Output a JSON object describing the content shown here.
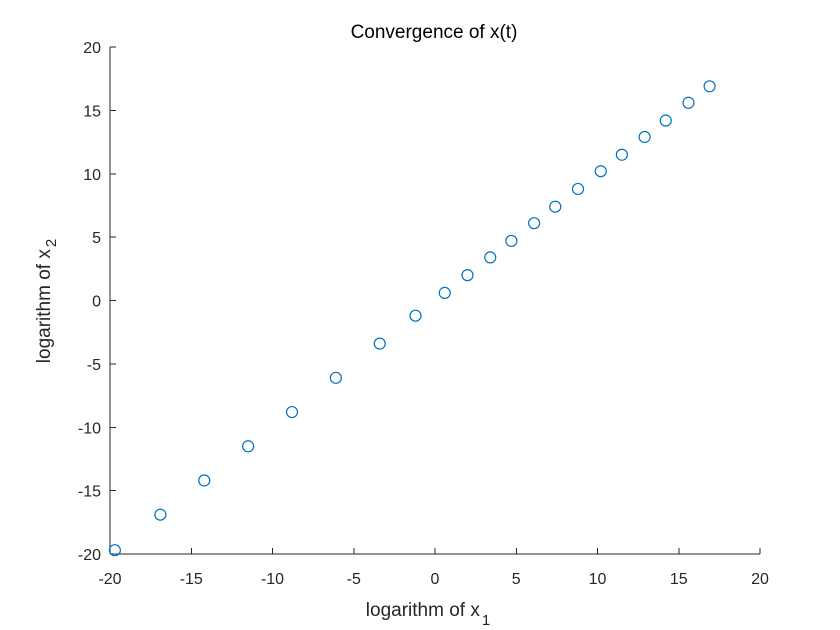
{
  "chart_data": {
    "type": "scatter",
    "title": "Convergence of x(t)",
    "xlabel": {
      "text": "logarithm of x",
      "sub": "1"
    },
    "ylabel": {
      "text": "logarithm of x",
      "sub": "2"
    },
    "xlim": [
      -20,
      20
    ],
    "ylim": [
      -20,
      20
    ],
    "xticks": [
      -20,
      -15,
      -10,
      -5,
      0,
      5,
      10,
      15,
      20
    ],
    "yticks": [
      -20,
      -15,
      -10,
      -5,
      0,
      5,
      10,
      15,
      20
    ],
    "grid": false,
    "marker": "circle-open",
    "color": "#0072BD",
    "points": [
      {
        "x": -19.7,
        "y": -19.7
      },
      {
        "x": -16.9,
        "y": -16.9
      },
      {
        "x": -14.2,
        "y": -14.2
      },
      {
        "x": -11.5,
        "y": -11.5
      },
      {
        "x": -8.8,
        "y": -8.8
      },
      {
        "x": -6.1,
        "y": -6.1
      },
      {
        "x": -3.4,
        "y": -3.4
      },
      {
        "x": -1.2,
        "y": -1.2
      },
      {
        "x": 0.6,
        "y": 0.6
      },
      {
        "x": 2.0,
        "y": 2.0
      },
      {
        "x": 3.4,
        "y": 3.4
      },
      {
        "x": 4.7,
        "y": 4.7
      },
      {
        "x": 6.1,
        "y": 6.1
      },
      {
        "x": 7.4,
        "y": 7.4
      },
      {
        "x": 8.8,
        "y": 8.8
      },
      {
        "x": 10.2,
        "y": 10.2
      },
      {
        "x": 11.5,
        "y": 11.5
      },
      {
        "x": 12.9,
        "y": 12.9
      },
      {
        "x": 14.2,
        "y": 14.2
      },
      {
        "x": 15.6,
        "y": 15.6
      },
      {
        "x": 16.9,
        "y": 16.9
      }
    ]
  }
}
